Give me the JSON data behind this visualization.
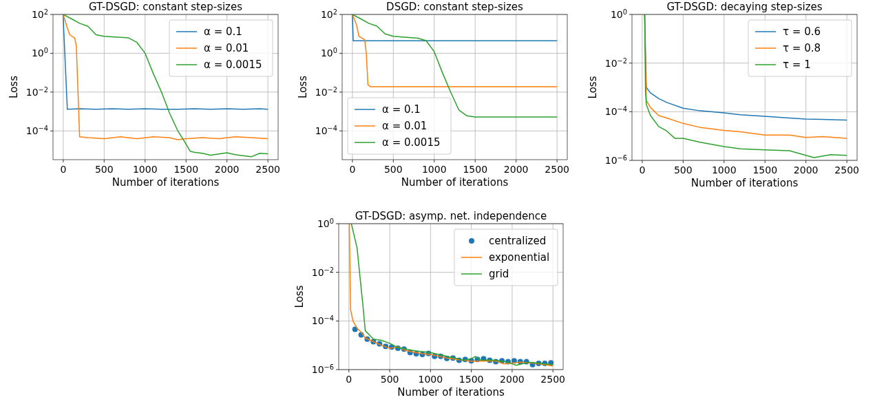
{
  "chart_data": [
    {
      "type": "line",
      "title": "GT-DSGD: constant step-sizes",
      "xlabel": "Number of iterations",
      "ylabel": "Loss",
      "log": "y",
      "grid": true,
      "legend": "top right",
      "xlim": [
        -125,
        2625
      ],
      "xticks": [
        0,
        500,
        1000,
        1500,
        2000,
        2500
      ],
      "ylim": [
        3.3e-06,
        100
      ],
      "yticks": [
        {
          "value": 100,
          "label": "10$^{2}$"
        },
        {
          "value": 1,
          "label": "10$^{0}$"
        },
        {
          "value": 0.01,
          "label": "10$^{−2}$"
        },
        {
          "value": 0.0001,
          "label": "10$^{−4}$"
        }
      ],
      "series": [
        {
          "name": "α = 0.1",
          "color": "#1f77b4",
          "x": [
            0,
            5,
            50,
            200,
            400,
            600,
            800,
            1000,
            1200,
            1400,
            1600,
            1800,
            2000,
            2200,
            2400,
            2500
          ],
          "values": [
            100,
            20,
            0.0013,
            0.0014,
            0.0013,
            0.0014,
            0.0013,
            0.0014,
            0.0013,
            0.0013,
            0.0014,
            0.0013,
            0.0014,
            0.0013,
            0.0014,
            0.0013
          ]
        },
        {
          "name": "α = 0.01",
          "color": "#ff7f0e",
          "x": [
            0,
            50,
            80,
            140,
            160,
            200,
            300,
            500,
            700,
            900,
            1100,
            1300,
            1400,
            1500,
            1700,
            1900,
            2100,
            2300,
            2500
          ],
          "values": [
            100,
            20,
            9,
            6,
            2.4,
            5e-05,
            4.5e-05,
            4e-05,
            5e-05,
            4e-05,
            5e-05,
            4.5e-05,
            3.5e-05,
            4e-05,
            4.5e-05,
            4e-05,
            5e-05,
            4.5e-05,
            4e-05
          ]
        },
        {
          "name": "α = 0.0015",
          "color": "#2ca02c",
          "x": [
            0,
            100,
            200,
            300,
            400,
            500,
            800,
            900,
            1000,
            1100,
            1200,
            1300,
            1400,
            1500,
            1550,
            1600,
            1700,
            1800,
            2000,
            2100,
            2300,
            2400,
            2500
          ],
          "values": [
            100,
            60,
            35,
            25,
            9,
            7.5,
            6.2,
            3.6,
            1,
            0.09,
            0.01,
            0.0008,
            0.0001,
            2.1e-05,
            9e-06,
            8e-06,
            7e-06,
            5.6e-06,
            7.5e-06,
            6e-06,
            4.7e-06,
            7e-06,
            6.6e-06
          ]
        }
      ]
    },
    {
      "type": "line",
      "title": "DSGD: constant step-sizes",
      "xlabel": "Number of iterations",
      "ylabel": "Loss",
      "log": "y",
      "grid": true,
      "legend": "bottom left",
      "xlim": [
        -125,
        2625
      ],
      "xticks": [
        0,
        500,
        1000,
        1500,
        2000,
        2500
      ],
      "ylim": [
        3.3e-06,
        100
      ],
      "yticks": [
        {
          "value": 100,
          "label": "10$^{2}$"
        },
        {
          "value": 1,
          "label": "10$^{0}$"
        },
        {
          "value": 0.01,
          "label": "10$^{−2}$"
        },
        {
          "value": 0.0001,
          "label": "10$^{−4}$"
        }
      ],
      "series": [
        {
          "name": "α = 0.1",
          "color": "#1f77b4",
          "x": [
            0,
            10,
            2500
          ],
          "values": [
            100,
            4.4,
            4.4
          ]
        },
        {
          "name": "α = 0.01",
          "color": "#ff7f0e",
          "x": [
            0,
            50,
            80,
            150,
            170,
            190,
            220,
            2500
          ],
          "values": [
            100,
            30,
            7.4,
            5,
            1,
            0.024,
            0.019,
            0.019
          ]
        },
        {
          "name": "α = 0.0015",
          "color": "#2ca02c",
          "x": [
            0,
            100,
            200,
            300,
            400,
            500,
            800,
            900,
            1000,
            1100,
            1200,
            1300,
            1400,
            1500,
            2500
          ],
          "values": [
            100,
            60,
            35,
            25,
            10,
            7.5,
            6,
            4.5,
            1.2,
            0.1,
            0.01,
            0.0012,
            0.0006,
            0.00052,
            0.00052
          ]
        }
      ]
    },
    {
      "type": "line",
      "title": "GT-DSGD: decaying step-sizes",
      "xlabel": "Number of iterations",
      "ylabel": "Loss",
      "log": "y",
      "grid": true,
      "legend": "top right",
      "xlim": [
        -125,
        2625
      ],
      "xticks": [
        0,
        500,
        1000,
        1500,
        2000,
        2500
      ],
      "ylim": [
        1e-06,
        1
      ],
      "yticks": [
        {
          "value": 1,
          "label": "10$^{0}$"
        },
        {
          "value": 0.01,
          "label": "10$^{−2}$"
        },
        {
          "value": 0.0001,
          "label": "10$^{−4}$"
        },
        {
          "value": 1e-06,
          "label": "10$^{−6}$"
        }
      ],
      "series": [
        {
          "name": "τ = 0.6",
          "color": "#1f77b4",
          "x": [
            30,
            50,
            100,
            200,
            300,
            500,
            700,
            1000,
            1200,
            1500,
            1800,
            2000,
            2200,
            2500
          ],
          "values": [
            1,
            0.001,
            0.0006,
            0.00035,
            0.00024,
            0.00014,
            0.00011,
            9e-05,
            7.5e-05,
            6.5e-05,
            5.5e-05,
            5e-05,
            4.8e-05,
            4.5e-05
          ]
        },
        {
          "name": "τ = 0.8",
          "color": "#ff7f0e",
          "x": [
            30,
            50,
            100,
            200,
            300,
            500,
            700,
            1000,
            1200,
            1500,
            1800,
            2000,
            2200,
            2500
          ],
          "values": [
            1,
            0.00029,
            0.00015,
            7e-05,
            5.5e-05,
            3.3e-05,
            2.3e-05,
            1.7e-05,
            1.5e-05,
            1.1e-05,
            1.1e-05,
            8.7e-06,
            9.5e-06,
            8e-06
          ]
        },
        {
          "name": "τ = 1",
          "color": "#2ca02c",
          "x": [
            30,
            40,
            50,
            100,
            200,
            300,
            400,
            500,
            700,
            1000,
            1200,
            1500,
            1800,
            2000,
            2100,
            2300,
            2500
          ],
          "values": [
            1,
            0.0007,
            0.0002,
            7e-05,
            2.5e-05,
            1.6e-05,
            8e-06,
            8e-06,
            5.6e-06,
            3.7e-06,
            3e-06,
            2.7e-06,
            2.5e-06,
            1.6e-06,
            1.3e-06,
            1.7e-06,
            1.6e-06
          ]
        }
      ]
    },
    {
      "type": "line",
      "title": "GT-DSGD: asymp. net. independence",
      "xlabel": "Number of iterations",
      "ylabel": "Loss",
      "log": "y",
      "grid": true,
      "legend": "top right",
      "xlim": [
        -125,
        2625
      ],
      "xticks": [
        0,
        500,
        1000,
        1500,
        2000,
        2500
      ],
      "ylim": [
        1e-06,
        1
      ],
      "yticks": [
        {
          "value": 1,
          "label": "10$^{0}$"
        },
        {
          "value": 0.01,
          "label": "10$^{−2}$"
        },
        {
          "value": 0.0001,
          "label": "10$^{−4}$"
        },
        {
          "value": 1e-06,
          "label": "10$^{−6}$"
        }
      ],
      "series": [
        {
          "name": "centralized",
          "type": "scatter",
          "marker": "circle",
          "color": "#1f77b4",
          "x": [
            75,
            150,
            225,
            300,
            375,
            450,
            525,
            600,
            675,
            750,
            825,
            900,
            975,
            1050,
            1125,
            1200,
            1275,
            1350,
            1425,
            1500,
            1575,
            1650,
            1725,
            1800,
            1875,
            1950,
            2025,
            2100,
            2175,
            2250,
            2325,
            2400,
            2475
          ],
          "values": [
            4.5e-05,
            2.7e-05,
            1.8e-05,
            1.4e-05,
            1.15e-05,
            9e-06,
            8.5e-06,
            7.5e-06,
            7e-06,
            5e-06,
            4.5e-06,
            4.2e-06,
            4.6e-06,
            3.5e-06,
            3.5e-06,
            2.9e-06,
            3e-06,
            2.4e-06,
            2.6e-06,
            2.3e-06,
            2.6e-06,
            2.8e-06,
            2.4e-06,
            2.1e-06,
            2.3e-06,
            2.1e-06,
            2.3e-06,
            2.1e-06,
            2.1e-06,
            1.6e-06,
            1.8e-06,
            1.8e-06,
            1.9e-06
          ]
        },
        {
          "name": "exponential",
          "color": "#ff7f0e",
          "x": [
            5,
            20,
            50,
            100,
            150,
            200,
            300,
            400,
            500,
            600,
            700,
            900,
            1000,
            1200,
            1500,
            1800,
            1900,
            2100,
            2300,
            2500
          ],
          "values": [
            1,
            0.0003,
            0.0001,
            5e-05,
            3.5e-05,
            2e-05,
            1.4e-05,
            1e-05,
            7.5e-06,
            8.5e-06,
            6e-06,
            4.5e-06,
            4.2e-06,
            3e-06,
            2.2e-06,
            2.3e-06,
            1.7e-06,
            2e-06,
            1.8e-06,
            1.4e-06
          ]
        },
        {
          "name": "grid",
          "color": "#2ca02c",
          "x": [
            30,
            100,
            130,
            170,
            200,
            300,
            400,
            500,
            600,
            800,
            1000,
            1200,
            1300,
            1400,
            1500,
            1550,
            1600,
            1800,
            1950,
            2050,
            2200,
            2500
          ],
          "values": [
            1,
            0.1,
            0.01,
            0.0005,
            4e-05,
            1.8e-05,
            1.6e-05,
            1.2e-05,
            8e-06,
            6e-06,
            5e-06,
            3.5e-06,
            3e-06,
            2.4e-06,
            2.8e-06,
            3.5e-06,
            2.5e-06,
            2.4e-06,
            2e-06,
            1.5e-06,
            2e-06,
            1.6e-06
          ]
        }
      ]
    }
  ]
}
